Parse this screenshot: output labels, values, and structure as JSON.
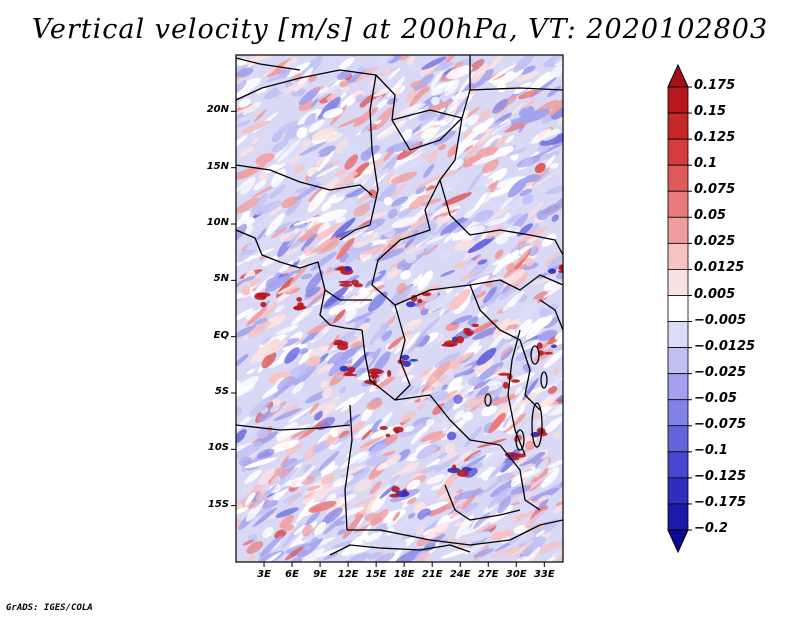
{
  "title": "Vertical velocity [m/s] at 200hPa, VT: 2020102803",
  "credit": "GrADS: IGES/COLA",
  "map": {
    "variable": "Vertical velocity",
    "units": "m/s",
    "level": "200hPa",
    "valid_time": "2020102803",
    "lat_labels": [
      "20N",
      "15N",
      "10N",
      "5N",
      "EQ",
      "5S",
      "10S",
      "15S"
    ],
    "lon_labels": [
      "3E",
      "6E",
      "9E",
      "12E",
      "15E",
      "18E",
      "21E",
      "24E",
      "27E",
      "30E",
      "33E"
    ],
    "lat_range": [
      -20,
      25
    ],
    "lon_range": [
      0,
      35
    ]
  },
  "colorbar": {
    "labels": [
      "0.175",
      "0.15",
      "0.125",
      "0.1",
      "0.075",
      "0.05",
      "0.025",
      "0.0125",
      "0.005",
      "−0.005",
      "−0.0125",
      "−0.025",
      "−0.05",
      "−0.075",
      "−0.1",
      "−0.125",
      "−0.175",
      "−0.2"
    ],
    "colors": [
      "#a50f15",
      "#b8171c",
      "#c62828",
      "#d43d3d",
      "#df5a5a",
      "#e87a7a",
      "#f19d9d",
      "#f7c2c2",
      "#fbe2e2",
      "#ffffff",
      "#dcdcf9",
      "#c0c0f4",
      "#a1a1ee",
      "#8282e6",
      "#6464dd",
      "#4747d0",
      "#2e2ebf",
      "#1a1aa8",
      "#0c0c90"
    ]
  }
}
